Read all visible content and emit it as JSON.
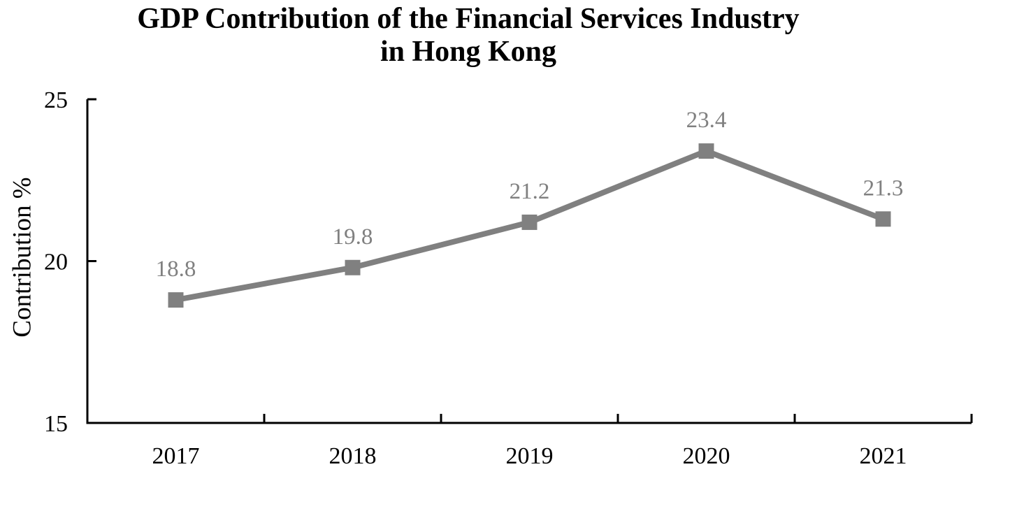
{
  "chart": {
    "title_line1": "GDP Contribution of the Financial Services Industry",
    "title_line2": "in Hong Kong",
    "ylabel": "Contribution %"
  },
  "chart_data": {
    "type": "line",
    "title": "GDP Contribution of the Financial Services Industry in Hong Kong",
    "categories": [
      "2017",
      "2018",
      "2019",
      "2020",
      "2021"
    ],
    "values": [
      18.8,
      19.8,
      21.2,
      23.4,
      21.3
    ],
    "data_labels": [
      "18.8",
      "19.8",
      "21.2",
      "23.4",
      "21.3"
    ],
    "xlabel": "",
    "ylabel": "Contribution %",
    "ylim": [
      15,
      25
    ],
    "yticks": [
      15,
      20,
      25
    ],
    "grid": false,
    "legend": "none",
    "marker": "square",
    "series_color": "#808080",
    "axis_color": "#000000",
    "label_color": "#808080"
  }
}
